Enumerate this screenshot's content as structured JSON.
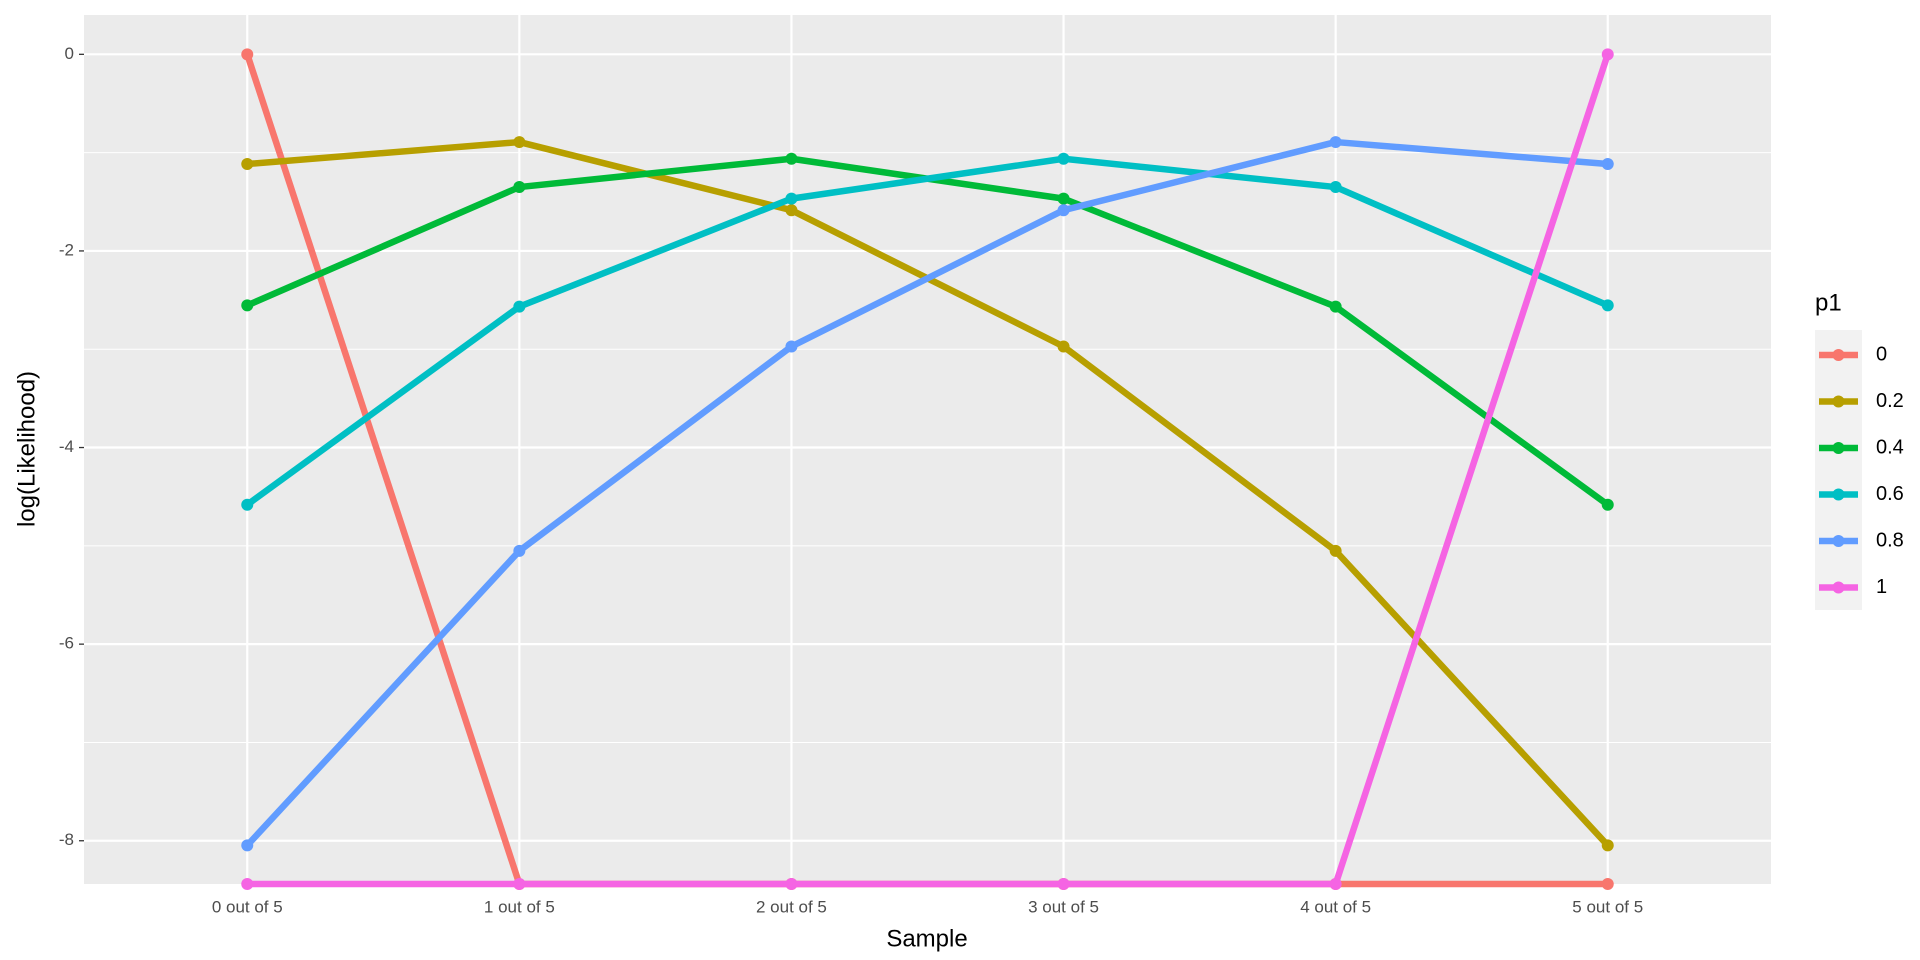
{
  "chart_data": {
    "type": "line",
    "x_label": "Sample",
    "y_label": "log(Likelihood)",
    "legend_title": "p1",
    "categories": [
      "0 out of 5",
      "1 out of 5",
      "2 out of 5",
      "3 out of 5",
      "4 out of 5",
      "5 out of 5"
    ],
    "series": [
      {
        "name": "0",
        "color": "#F8766D",
        "values": [
          0,
          -8.44,
          -8.44,
          -8.44,
          -8.44,
          -8.44
        ]
      },
      {
        "name": "0.2",
        "color": "#B79F00",
        "values": [
          -1.1157,
          -0.8926,
          -1.5857,
          -2.972,
          -5.0515,
          -8.0472
        ]
      },
      {
        "name": "0.4",
        "color": "#00BA38",
        "values": [
          -2.554,
          -1.3502,
          -1.0625,
          -1.468,
          -2.5666,
          -4.5815
        ]
      },
      {
        "name": "0.6",
        "color": "#00BFC4",
        "values": [
          -4.5815,
          -2.5666,
          -1.468,
          -1.0625,
          -1.3502,
          -2.554
        ]
      },
      {
        "name": "0.8",
        "color": "#619CFF",
        "values": [
          -8.0472,
          -5.0515,
          -2.972,
          -1.5857,
          -0.8926,
          -1.1157
        ]
      },
      {
        "name": "1",
        "color": "#F564E3",
        "values": [
          -8.44,
          -8.44,
          -8.44,
          -8.44,
          -8.44,
          0
        ]
      }
    ],
    "ylim": [
      -8.44,
      0.4
    ],
    "yticks": [
      0,
      -2,
      -4,
      -6,
      -8
    ],
    "grid": true,
    "legend": "right"
  }
}
